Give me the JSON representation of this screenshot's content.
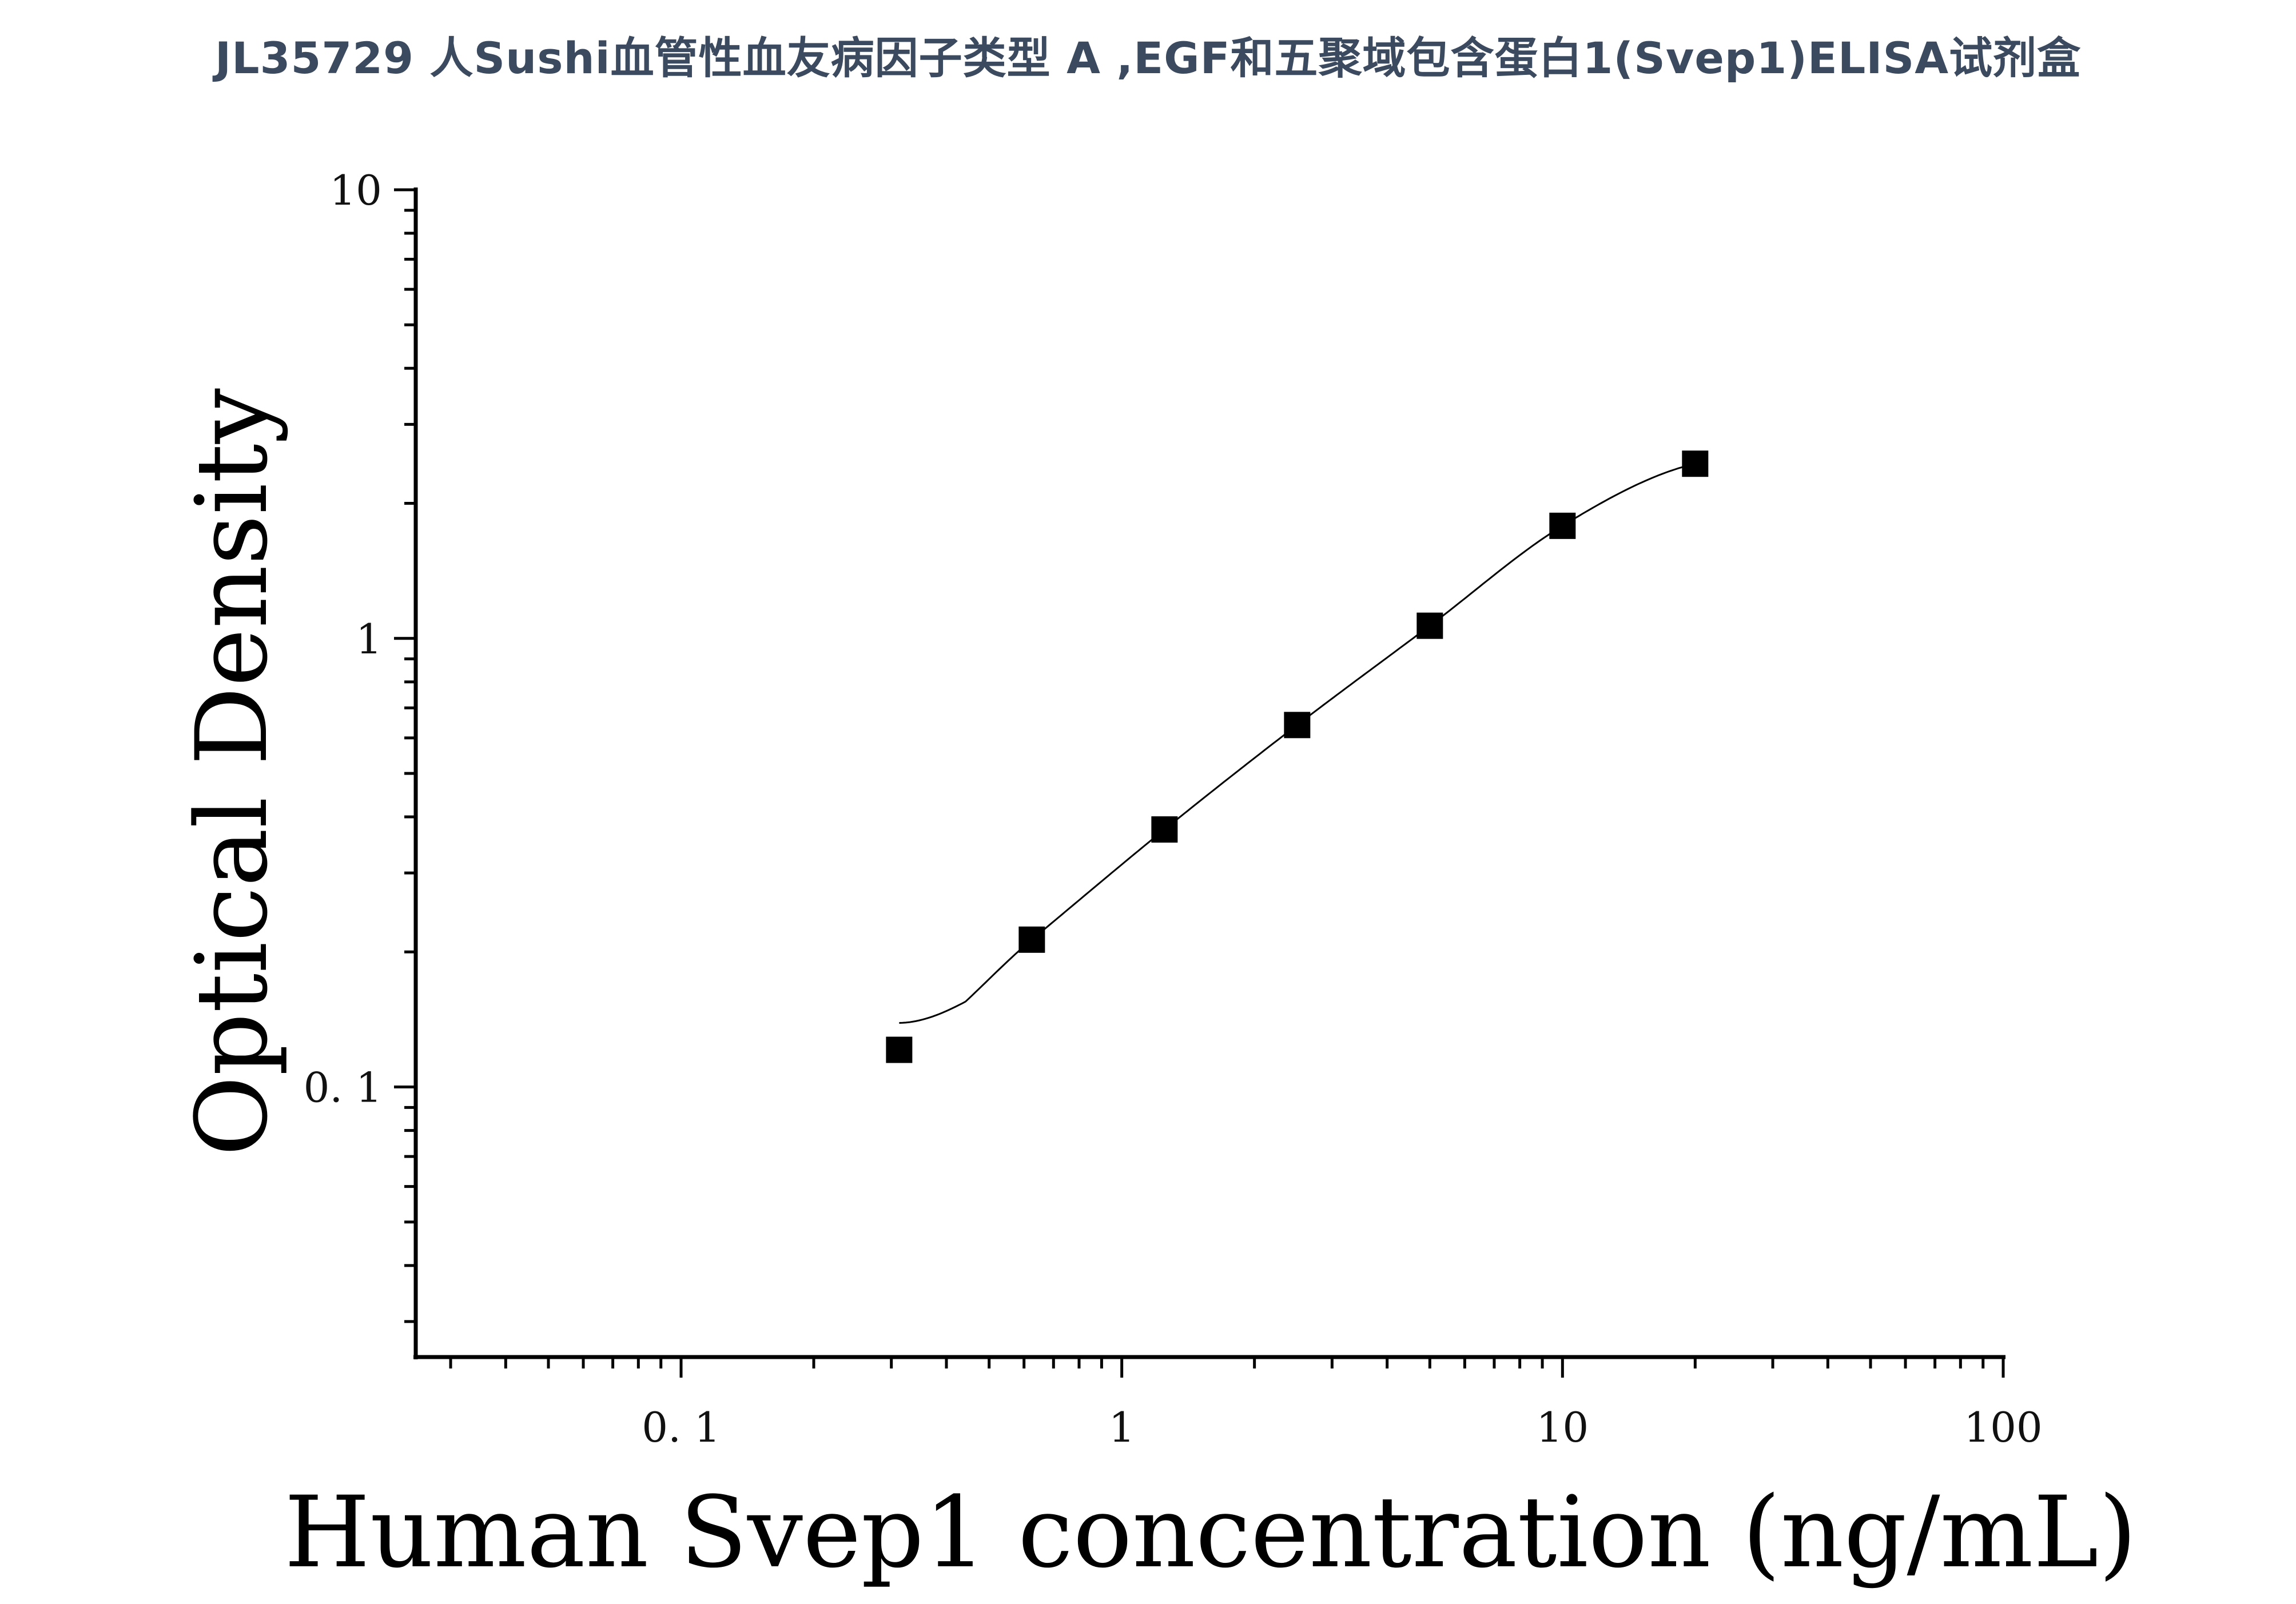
{
  "page": {
    "title": "JL35729 人Sushi血管性血友病因子类型 A ,EGF和五聚域包含蛋白1(Svep1)ELISA试剂盒"
  },
  "chart_data": {
    "type": "scatter",
    "title": "",
    "xlabel": "Human Svep1 concentration (ng/mL)",
    "ylabel": "Optical Density",
    "x_scale": "log",
    "y_scale": "log",
    "xlim": [
      0.025,
      100
    ],
    "ylim": [
      0.025,
      10
    ],
    "x_ticks": [
      {
        "value": 0.1,
        "label": "0. 1"
      },
      {
        "value": 1,
        "label": "1"
      },
      {
        "value": 10,
        "label": "10"
      },
      {
        "value": 100,
        "label": "100"
      }
    ],
    "y_ticks": [
      {
        "value": 0.1,
        "label": "0. 1"
      },
      {
        "value": 1,
        "label": "1"
      },
      {
        "value": 10,
        "label": "10"
      }
    ],
    "grid": false,
    "legend": "none",
    "series": [
      {
        "x": [
          0.3125,
          0.625,
          1.25,
          2.5,
          5,
          10,
          20
        ],
        "y": [
          0.121,
          0.213,
          0.375,
          0.641,
          1.067,
          1.782,
          2.451
        ],
        "marker": "square",
        "color": "#000000",
        "fit_curve": true
      }
    ]
  }
}
